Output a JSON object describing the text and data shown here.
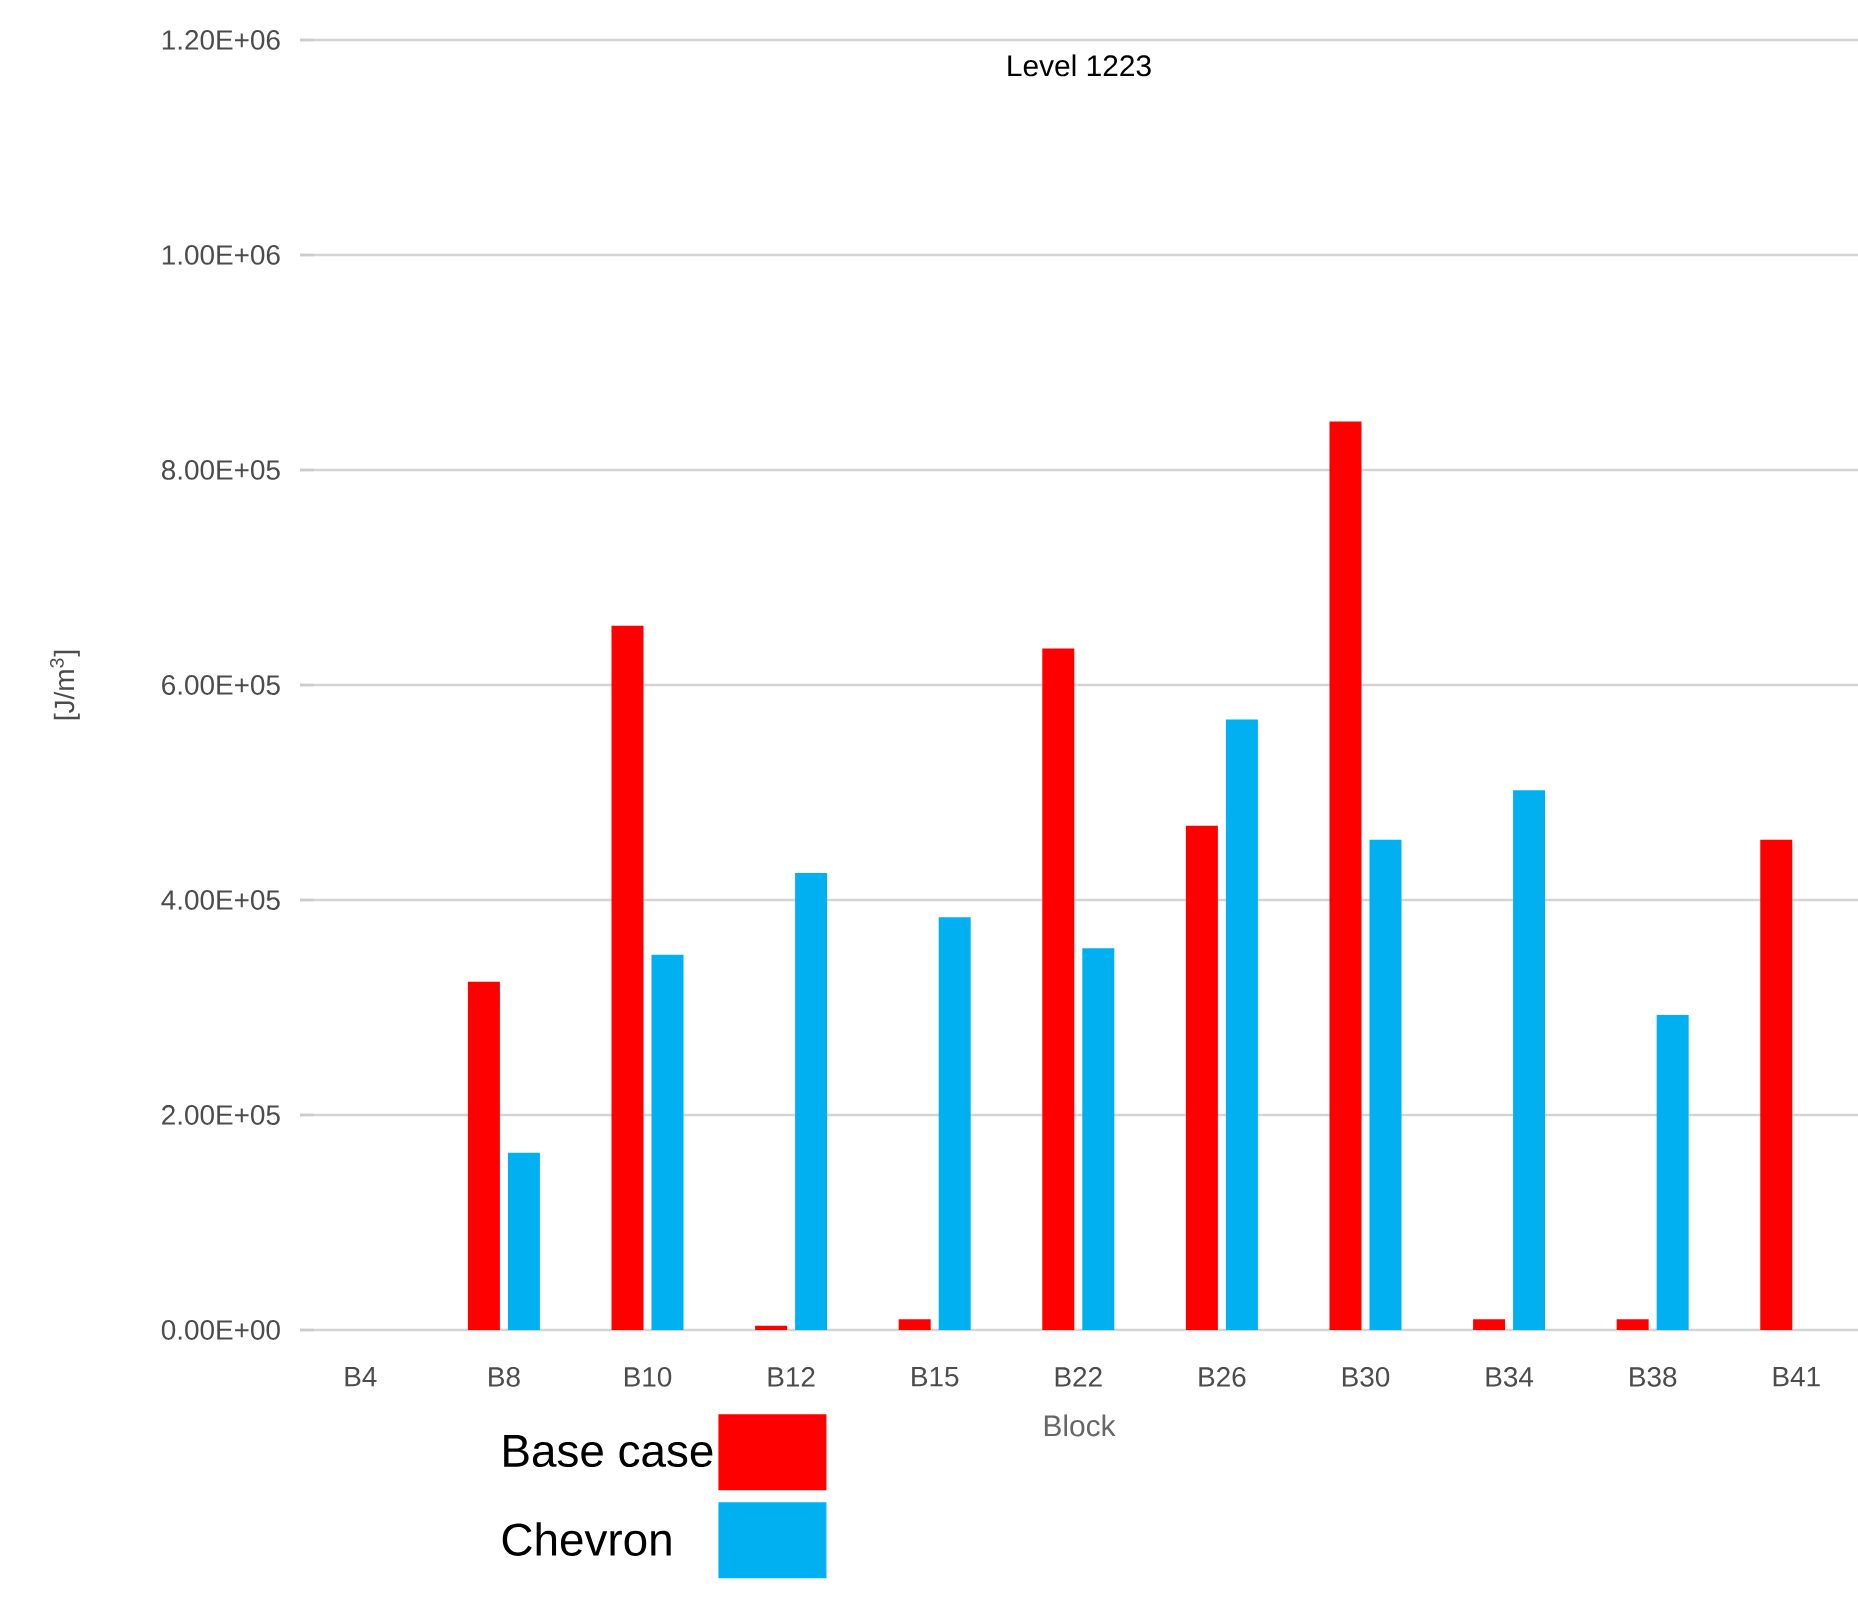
{
  "chart_data": {
    "type": "bar",
    "title": "Level 1223",
    "xlabel": "Block",
    "ylabel": "[J/m$^{3}$]",
    "categories": [
      "B4",
      "B8",
      "B10",
      "B12",
      "B15",
      "B22",
      "B26",
      "B30",
      "B34",
      "B38",
      "B41"
    ],
    "series": [
      {
        "name": "Base case",
        "color": "#ff0000",
        "values": [
          0,
          324000,
          655000,
          4000,
          10000,
          634000,
          469000,
          845000,
          10000,
          10000,
          456000
        ]
      },
      {
        "name": "Chevron",
        "color": "#00b0f0",
        "values": [
          0,
          165000,
          349000,
          425000,
          384000,
          355000,
          568000,
          456000,
          502000,
          293000,
          0
        ]
      }
    ],
    "ylim": [
      0,
      1200000
    ],
    "yticks": [
      {
        "value": 0,
        "label": "0.00E+00"
      },
      {
        "value": 200000,
        "label": "2.00E+05"
      },
      {
        "value": 400000,
        "label": "4.00E+05"
      },
      {
        "value": 600000,
        "label": "6.00E+05"
      },
      {
        "value": 800000,
        "label": "8.00E+05"
      },
      {
        "value": 1000000,
        "label": "1.00E+06"
      },
      {
        "value": 1200000,
        "label": "1.20E+06"
      }
    ],
    "grid": "y",
    "legend": "bottom left"
  }
}
